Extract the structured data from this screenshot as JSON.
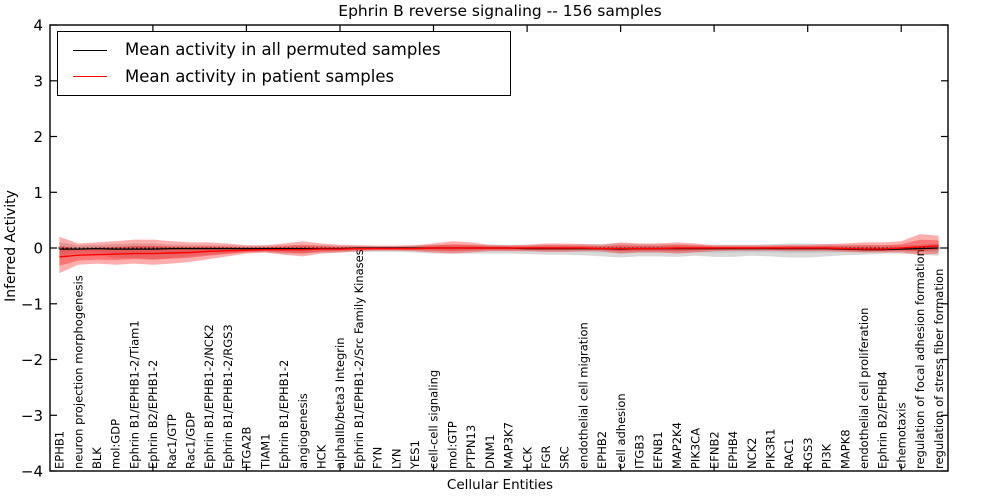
{
  "title": "Ephrin B reverse signaling -- 156 samples",
  "legend": {
    "items": [
      {
        "label": "Mean activity in all permuted samples",
        "color": "#000000"
      },
      {
        "label": "Mean activity in patient samples",
        "color": "#ff0000"
      }
    ]
  },
  "colors": {
    "permuted_line": "#000000",
    "patient_line": "#ff0000",
    "permuted_band": "#000000",
    "patient_band": "#ff0000",
    "axis": "#000000"
  },
  "chart_data": {
    "type": "line",
    "title": "Ephrin B reverse signaling -- 156 samples",
    "xlabel": "Cellular Entities",
    "ylabel": "Inferred Activity",
    "ylim": [
      -4,
      4
    ],
    "yticks": [
      4,
      3,
      2,
      1,
      0,
      -1,
      -2,
      -3,
      -4
    ],
    "grid": false,
    "legend_position": "upper left",
    "zero_line": {
      "y": 0,
      "style": "dotted",
      "color": "#000000"
    },
    "categories": [
      "EPHB1",
      "neuron projection morphogenesis",
      "BLK",
      "mol:GDP",
      "Ephrin B1/EPHB1-2/Tiam1",
      "Ephrin B2/EPHB1-2",
      "Rac1/GTP",
      "Rac1/GDP",
      "Ephrin B1/EPHB1-2/NCK2",
      "Ephrin B1/EPHB1-2/RGS3",
      "ITGA2B",
      "TIAM1",
      "Ephrin B1/EPHB1-2",
      "angiogenesis",
      "HCK",
      "alphaIIb/beta3 Integrin",
      "Ephrin B1/EPHB1-2/Src Family Kinases",
      "FYN",
      "LYN",
      "YES1",
      "cell-cell signaling",
      "mol:GTP",
      "PTPN13",
      "DNM1",
      "MAP3K7",
      "LCK",
      "FGR",
      "SRC",
      "endothelial cell migration",
      "EPHB2",
      "cell adhesion",
      "ITGB3",
      "EFNB1",
      "MAP2K4",
      "PIK3CA",
      "EFNB2",
      "EPHB4",
      "NCK2",
      "PIK3R1",
      "RAC1",
      "RGS3",
      "PI3K",
      "MAPK8",
      "endothelial cell proliferation",
      "Ephrin B2/EPHB4",
      "chemotaxis",
      "regulation of focal adhesion formation",
      "regulation of stress fiber formation"
    ],
    "series": [
      {
        "name": "Mean activity in all permuted samples",
        "color": "#000000",
        "values": [
          -0.02,
          -0.02,
          -0.01,
          -0.02,
          -0.02,
          -0.02,
          -0.01,
          -0.01,
          -0.01,
          -0.01,
          -0.01,
          -0.01,
          -0.01,
          -0.01,
          -0.01,
          -0.01,
          0,
          0,
          0,
          0,
          0,
          0,
          0,
          0,
          0,
          -0.01,
          -0.01,
          -0.01,
          -0.01,
          -0.01,
          -0.02,
          -0.01,
          -0.01,
          -0.01,
          -0.01,
          -0.01,
          -0.01,
          -0.01,
          -0.01,
          -0.01,
          -0.01,
          -0.01,
          -0.02,
          -0.03,
          -0.03,
          -0.02,
          -0.01,
          0
        ],
        "band_upper": [
          0.1,
          0.05,
          0.06,
          0.07,
          0.08,
          0.08,
          0.06,
          0.06,
          0.05,
          0.05,
          0.04,
          0.04,
          0.05,
          0.06,
          0.05,
          0.04,
          0.04,
          0.04,
          0.04,
          0.05,
          0.06,
          0.06,
          0.06,
          0.06,
          0.06,
          0.06,
          0.06,
          0.06,
          0.07,
          0.07,
          0.08,
          0.07,
          0.07,
          0.07,
          0.06,
          0.06,
          0.06,
          0.06,
          0.07,
          0.08,
          0.08,
          0.07,
          0.06,
          0.06,
          0.05,
          0.05,
          0.06,
          0.08
        ],
        "band_lower": [
          -0.15,
          -0.1,
          -0.12,
          -0.18,
          -0.18,
          -0.2,
          -0.18,
          -0.15,
          -0.12,
          -0.1,
          -0.08,
          -0.08,
          -0.1,
          -0.1,
          -0.08,
          -0.08,
          -0.07,
          -0.07,
          -0.07,
          -0.08,
          -0.1,
          -0.1,
          -0.1,
          -0.1,
          -0.1,
          -0.11,
          -0.12,
          -0.12,
          -0.13,
          -0.15,
          -0.17,
          -0.15,
          -0.15,
          -0.16,
          -0.14,
          -0.16,
          -0.16,
          -0.14,
          -0.15,
          -0.17,
          -0.17,
          -0.15,
          -0.13,
          -0.12,
          -0.1,
          -0.1,
          -0.12,
          -0.14
        ]
      },
      {
        "name": "Mean activity in patient samples",
        "color": "#ff0000",
        "values": [
          -0.16,
          -0.13,
          -0.12,
          -0.11,
          -0.1,
          -0.1,
          -0.09,
          -0.08,
          -0.06,
          -0.05,
          -0.04,
          -0.03,
          -0.03,
          -0.03,
          -0.02,
          -0.02,
          -0.01,
          -0.01,
          -0.01,
          -0.01,
          0,
          0,
          0,
          0,
          0,
          0,
          0,
          0,
          0,
          -0.01,
          -0.01,
          -0.01,
          -0.01,
          0,
          0,
          0,
          0,
          0,
          0,
          0,
          0,
          0,
          -0.01,
          -0.02,
          -0.02,
          0,
          0.02,
          0.04
        ],
        "band_upper": [
          0.2,
          0.08,
          0.1,
          0.12,
          0.15,
          0.15,
          0.12,
          0.1,
          0.1,
          0.08,
          0.05,
          0.05,
          0.08,
          0.12,
          0.08,
          0.06,
          0.05,
          0.04,
          0.04,
          0.05,
          0.08,
          0.12,
          0.1,
          0.06,
          0.05,
          0.06,
          0.08,
          0.08,
          0.07,
          0.06,
          0.1,
          0.08,
          0.08,
          0.1,
          0.08,
          0.05,
          0.05,
          0.05,
          0.05,
          0.06,
          0.06,
          0.07,
          0.08,
          0.1,
          0.1,
          0.12,
          0.25,
          0.22
        ],
        "band_lower": [
          -0.45,
          -0.3,
          -0.28,
          -0.3,
          -0.28,
          -0.3,
          -0.28,
          -0.25,
          -0.2,
          -0.15,
          -0.1,
          -0.08,
          -0.12,
          -0.15,
          -0.1,
          -0.08,
          -0.06,
          -0.05,
          -0.05,
          -0.06,
          -0.08,
          -0.1,
          -0.08,
          -0.06,
          -0.06,
          -0.06,
          -0.07,
          -0.07,
          -0.06,
          -0.06,
          -0.1,
          -0.08,
          -0.08,
          -0.1,
          -0.08,
          -0.06,
          -0.05,
          -0.05,
          -0.05,
          -0.06,
          -0.06,
          -0.06,
          -0.07,
          -0.08,
          -0.08,
          -0.08,
          -0.12,
          -0.1
        ]
      }
    ]
  }
}
